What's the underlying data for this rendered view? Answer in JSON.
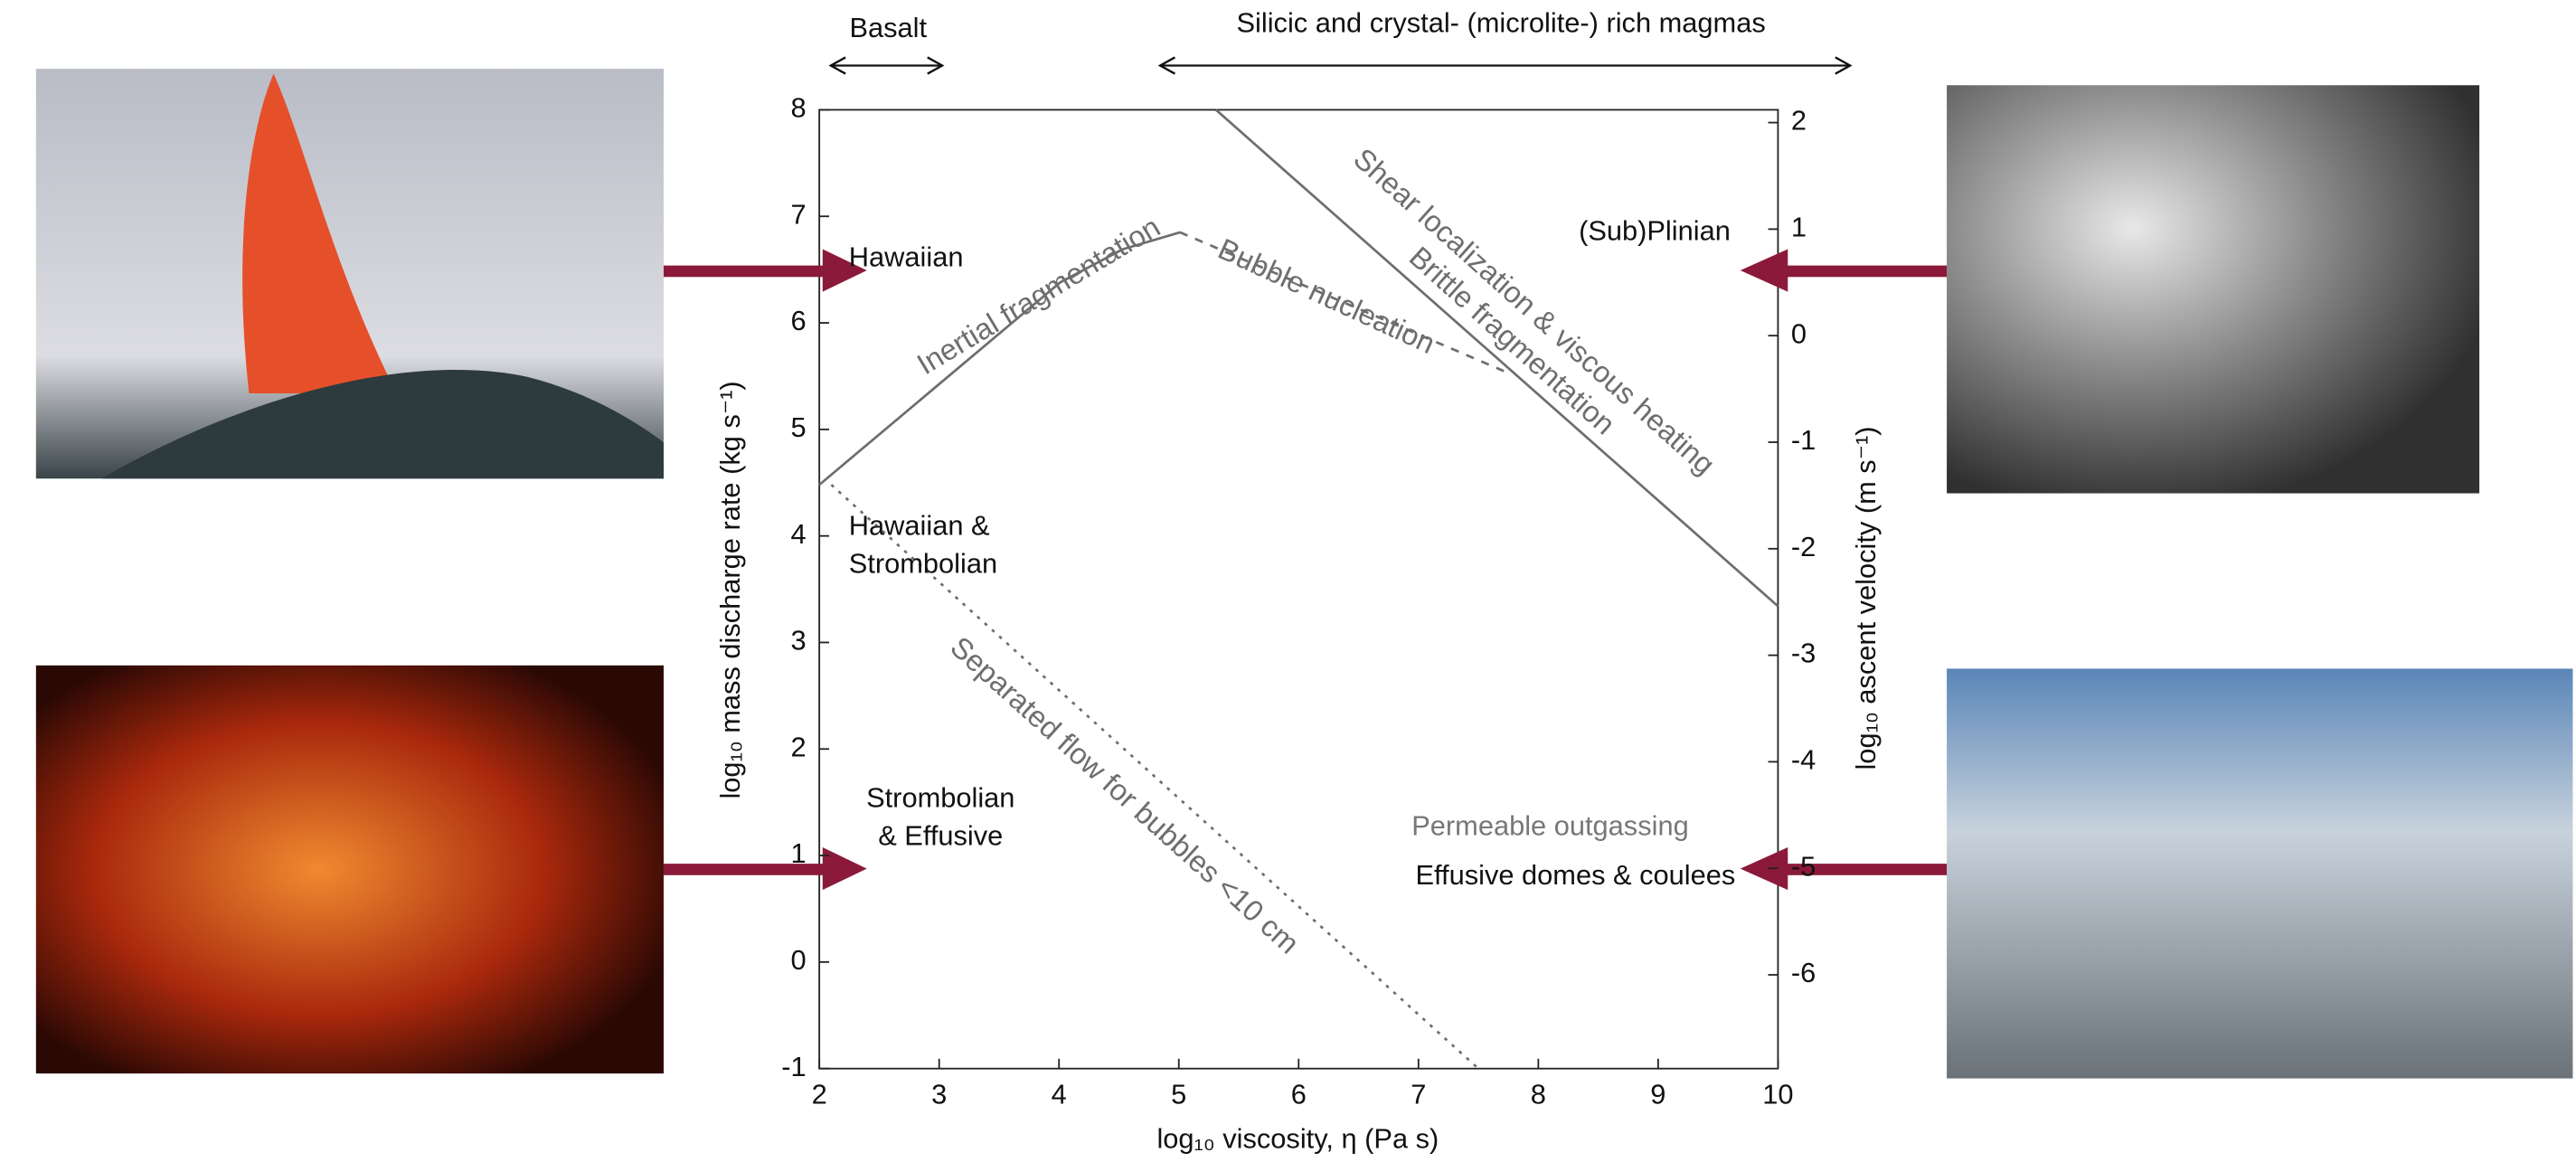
{
  "chart_data": {
    "type": "line",
    "xlabel": "log₁₀ viscosity, η (Pa s)",
    "ylabel": "log₁₀ mass discharge rate (kg s⁻¹)",
    "y2label": "log₁₀ ascent velocity (m s⁻¹)",
    "xlim": [
      2,
      10
    ],
    "xticks": [
      2,
      3,
      4,
      5,
      6,
      7,
      8,
      9,
      10
    ],
    "ylim": [
      -1,
      8
    ],
    "yticks": [
      -1,
      0,
      1,
      2,
      3,
      4,
      5,
      6,
      7,
      8
    ],
    "y2lim": [
      -6.88,
      2.12
    ],
    "y2ticks": [
      -6,
      -5,
      -4,
      -3,
      -2,
      -1,
      0,
      1,
      2
    ],
    "series": [
      {
        "name": "Inertial fragmentation",
        "color": "#6e6e6e",
        "style": "solid",
        "x": [
          2,
          4.01,
          4.53,
          5.01
        ],
        "values": [
          4.48,
          6.38,
          6.69,
          6.85
        ]
      },
      {
        "name": "Bubble nucleation",
        "color": "#6e6e6e",
        "style": "dashed",
        "x": [
          5.01,
          7.77
        ],
        "values": [
          6.85,
          5.52
        ]
      },
      {
        "name": "Brittle fragmentation",
        "color": "#6e6e6e",
        "style": "solid",
        "x": [
          5.31,
          10
        ],
        "values": [
          8,
          3.34
        ]
      },
      {
        "name": "Separated flow for bubbles <10 cm",
        "color": "#6e6e6e",
        "style": "dotted",
        "x": [
          2.1,
          7.5
        ],
        "values": [
          4.48,
          -1
        ]
      }
    ],
    "annotations": [
      "Shear localization & viscous heating",
      "Basalt",
      "Silicic and crystal- (microlite-) rich magmas",
      "Hawaiian",
      [
        "Hawaiian &",
        "Strombolian"
      ],
      [
        "Strombolian",
        "& Effusive"
      ],
      "(Sub)Plinian",
      "Permeable outgassing",
      "Effusive domes & coulees"
    ]
  }
}
